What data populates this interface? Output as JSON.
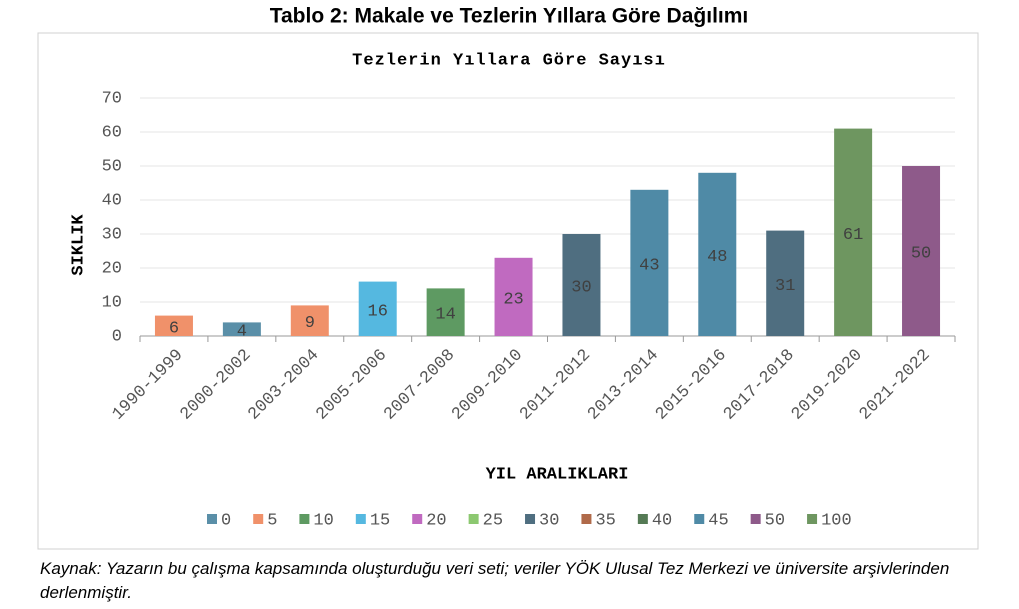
{
  "heading": "Tablo 2: Makale ve Tezlerin Yıllara Göre Dağılımı",
  "chart_data": {
    "type": "bar",
    "title": "Tezlerin Yıllara Göre Sayısı",
    "x_label": "YIL ARALIKLARI",
    "y_label": "SIKLIK",
    "categories": [
      "1990-1999",
      "2000-2002",
      "2003-2004",
      "2005-2006",
      "2007-2008",
      "2009-2010",
      "2011-2012",
      "2013-2014",
      "2015-2016",
      "2017-2018",
      "2019-2020",
      "2021-2022"
    ],
    "values": [
      6,
      4,
      9,
      16,
      14,
      23,
      30,
      43,
      48,
      31,
      61,
      50
    ],
    "colors": [
      "#f0916a",
      "#5a8fa8",
      "#f0916a",
      "#55b8e0",
      "#5e9a62",
      "#c06ac0",
      "#4f6e80",
      "#4f8aa6",
      "#4f8aa6",
      "#4f6e80",
      "#6e9660",
      "#8e5a8a"
    ],
    "ylim": [
      0,
      70
    ],
    "yticks": [
      0,
      10,
      20,
      30,
      40,
      50,
      60,
      70
    ],
    "grid": true,
    "legend": [
      {
        "label": "0",
        "color": "#5a8fa8"
      },
      {
        "label": "5",
        "color": "#f0916a"
      },
      {
        "label": "10",
        "color": "#5e9a62"
      },
      {
        "label": "15",
        "color": "#55b8e0"
      },
      {
        "label": "20",
        "color": "#c06ac0"
      },
      {
        "label": "25",
        "color": "#8cc870"
      },
      {
        "label": "30",
        "color": "#4f6e80"
      },
      {
        "label": "35",
        "color": "#b06a4a"
      },
      {
        "label": "40",
        "color": "#557a55"
      },
      {
        "label": "45",
        "color": "#4f8aa6"
      },
      {
        "label": "50",
        "color": "#8e5a8a"
      },
      {
        "label": "100",
        "color": "#6e9660"
      }
    ]
  },
  "caption": "Kaynak: Yazarın bu çalışma kapsamında oluşturduğu veri seti; veriler YÖK Ulusal Tez Merkezi ve üniversite arşivlerinden derlenmiştir."
}
